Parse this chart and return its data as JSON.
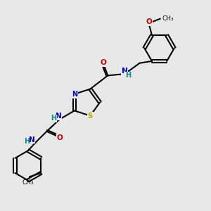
{
  "bg_color": "#e8e8e8",
  "bond_width": 1.5,
  "N_color": "#0000cc",
  "O_color": "#cc0000",
  "S_color": "#aaaa00",
  "NH_color": "#008888",
  "C_color": "#000000",
  "figsize": [
    3.0,
    3.0
  ],
  "dpi": 100,
  "xlim": [
    0,
    10
  ],
  "ylim": [
    0,
    10
  ]
}
